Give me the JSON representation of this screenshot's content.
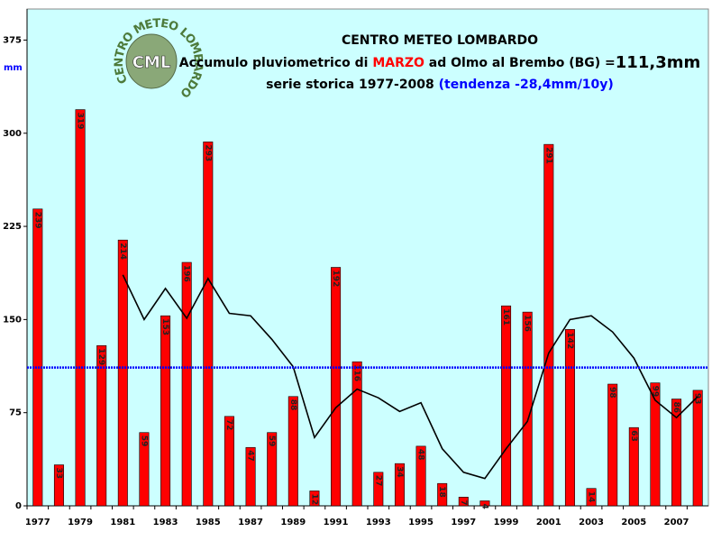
{
  "chart_data": {
    "type": "bar",
    "title": "CENTRO METEO LOMBARDO",
    "subtitle_parts": [
      "Accumulo pluviometrico di ",
      "MARZO",
      " ad Olmo al Brembo (BG) =",
      "111,3mm"
    ],
    "subtitle2_parts": [
      "serie storica 1977-2008 ",
      "(tendenza -28,4mm/10y)"
    ],
    "y_label": "mm",
    "logo_text": "CML",
    "logo_ring": "CENTRO METEO LOMBARDO",
    "categories": [
      "1977",
      null,
      "1979",
      null,
      "1981",
      null,
      "1983",
      null,
      "1985",
      null,
      "1987",
      null,
      "1989",
      null,
      "1991",
      null,
      "1993",
      null,
      "1995",
      null,
      "1997",
      null,
      "1999",
      null,
      "2001",
      null,
      "2003",
      null,
      "2005",
      null,
      "2007",
      null
    ],
    "series": [
      {
        "type": "bar",
        "color": "#ff0000",
        "values": [
          239,
          33,
          319,
          129,
          214,
          59,
          153,
          196,
          293,
          72,
          47,
          59,
          88,
          12,
          192,
          116,
          27,
          34,
          48,
          18,
          7,
          4,
          161,
          156,
          291,
          142,
          14,
          98,
          63,
          99,
          86,
          93
        ]
      },
      {
        "type": "line",
        "color": "#000000",
        "values": [
          null,
          null,
          null,
          null,
          186,
          150,
          175,
          151,
          183,
          155,
          153,
          134,
          112,
          55,
          79,
          94,
          87,
          76,
          83,
          46,
          27,
          22,
          46,
          68,
          123,
          150,
          153,
          140,
          119,
          85,
          71,
          88
        ]
      }
    ],
    "mean_line": {
      "value": 111.3,
      "color": "#0000ff"
    },
    "ylim": [
      0,
      400
    ],
    "yticks": [
      0,
      75,
      150,
      225,
      300,
      375
    ]
  }
}
